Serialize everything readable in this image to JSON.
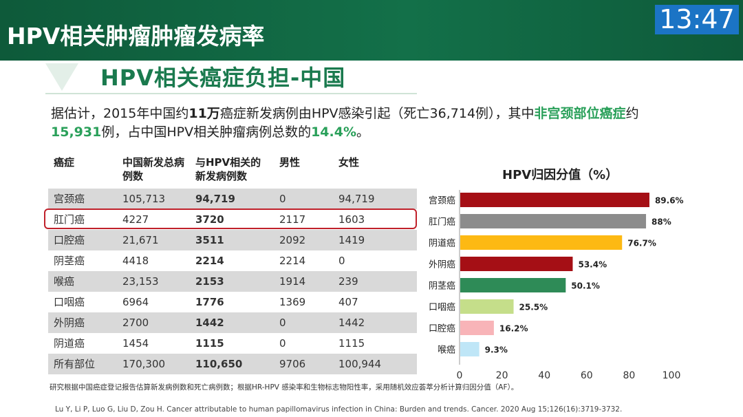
{
  "header": {
    "title": "HPV相关肿瘤肿瘤发病率",
    "clock": "13:47"
  },
  "subtitle": "HPV相关癌症负担-中国",
  "intro": {
    "p1": "据估计，2015年中国约",
    "b1": "11万",
    "p2": "癌症新发病例由HPV感染引起（死亡36,714例），其中",
    "g1": "非宫颈部位癌症",
    "p3": "约",
    "g2": "15,931",
    "p4": "例，占中国HPV相关肿瘤病例总数的",
    "g3": "14.4%",
    "p5": "。"
  },
  "table": {
    "headers": [
      "癌症",
      "中国新发总病例数",
      "与HPV相关的新发病例数",
      "男性",
      "女性"
    ],
    "rows": [
      [
        "宫颈癌",
        "105,713",
        "94,719",
        "0",
        "94,719"
      ],
      [
        "肛门癌",
        "4227",
        "3720",
        "2117",
        "1603"
      ],
      [
        "口腔癌",
        "21,671",
        "3511",
        "2092",
        "1419"
      ],
      [
        "阴茎癌",
        "4418",
        "2214",
        "2214",
        "0"
      ],
      [
        "喉癌",
        "23,153",
        "2153",
        "1914",
        "239"
      ],
      [
        "口咽癌",
        "6964",
        "1776",
        "1369",
        "407"
      ],
      [
        "外阴癌",
        "2700",
        "1442",
        "0",
        "1442"
      ],
      [
        "阴道癌",
        "1454",
        "1115",
        "0",
        "1115"
      ],
      [
        "所有部位",
        "170,300",
        "110,650",
        "9706",
        "100,944"
      ]
    ]
  },
  "chart_data": {
    "type": "bar",
    "orientation": "horizontal",
    "title": "HPV归因分值（%）",
    "categories": [
      "宫颈癌",
      "肛门癌",
      "阴道癌",
      "外阴癌",
      "阴茎癌",
      "口咽癌",
      "口腔癌",
      "喉癌"
    ],
    "values": [
      89.6,
      88,
      76.7,
      53.4,
      50.1,
      25.5,
      16.2,
      9.3
    ],
    "labels": [
      "89.6%",
      "88%",
      "76.7%",
      "53.4%",
      "50.1%",
      "25.5%",
      "16.2%",
      "9.3%"
    ],
    "colors": [
      "#a50f15",
      "#8c8c8c",
      "#fdb913",
      "#a50f15",
      "#2e8b57",
      "#c5de8a",
      "#f8b4b8",
      "#bfe6f7"
    ],
    "xlim": [
      0,
      100
    ],
    "xticks": [
      "0",
      "20",
      "40",
      "60",
      "80",
      "100"
    ],
    "grid": false
  },
  "footnote": "研究根据中国癌症登记报告估算新发病例数和死亡病例数；根据HR-HPV 感染率和生物标志物阳性率，采用随机效应荟萃分析计算归因分值（AF）。",
  "citation": "Lu Y, Li P, Luo G, Liu D, Zou H. Cancer attributable to human papillomavirus infection in China: Burden and trends. Cancer. 2020 Aug 15;126(16):3719-3732."
}
